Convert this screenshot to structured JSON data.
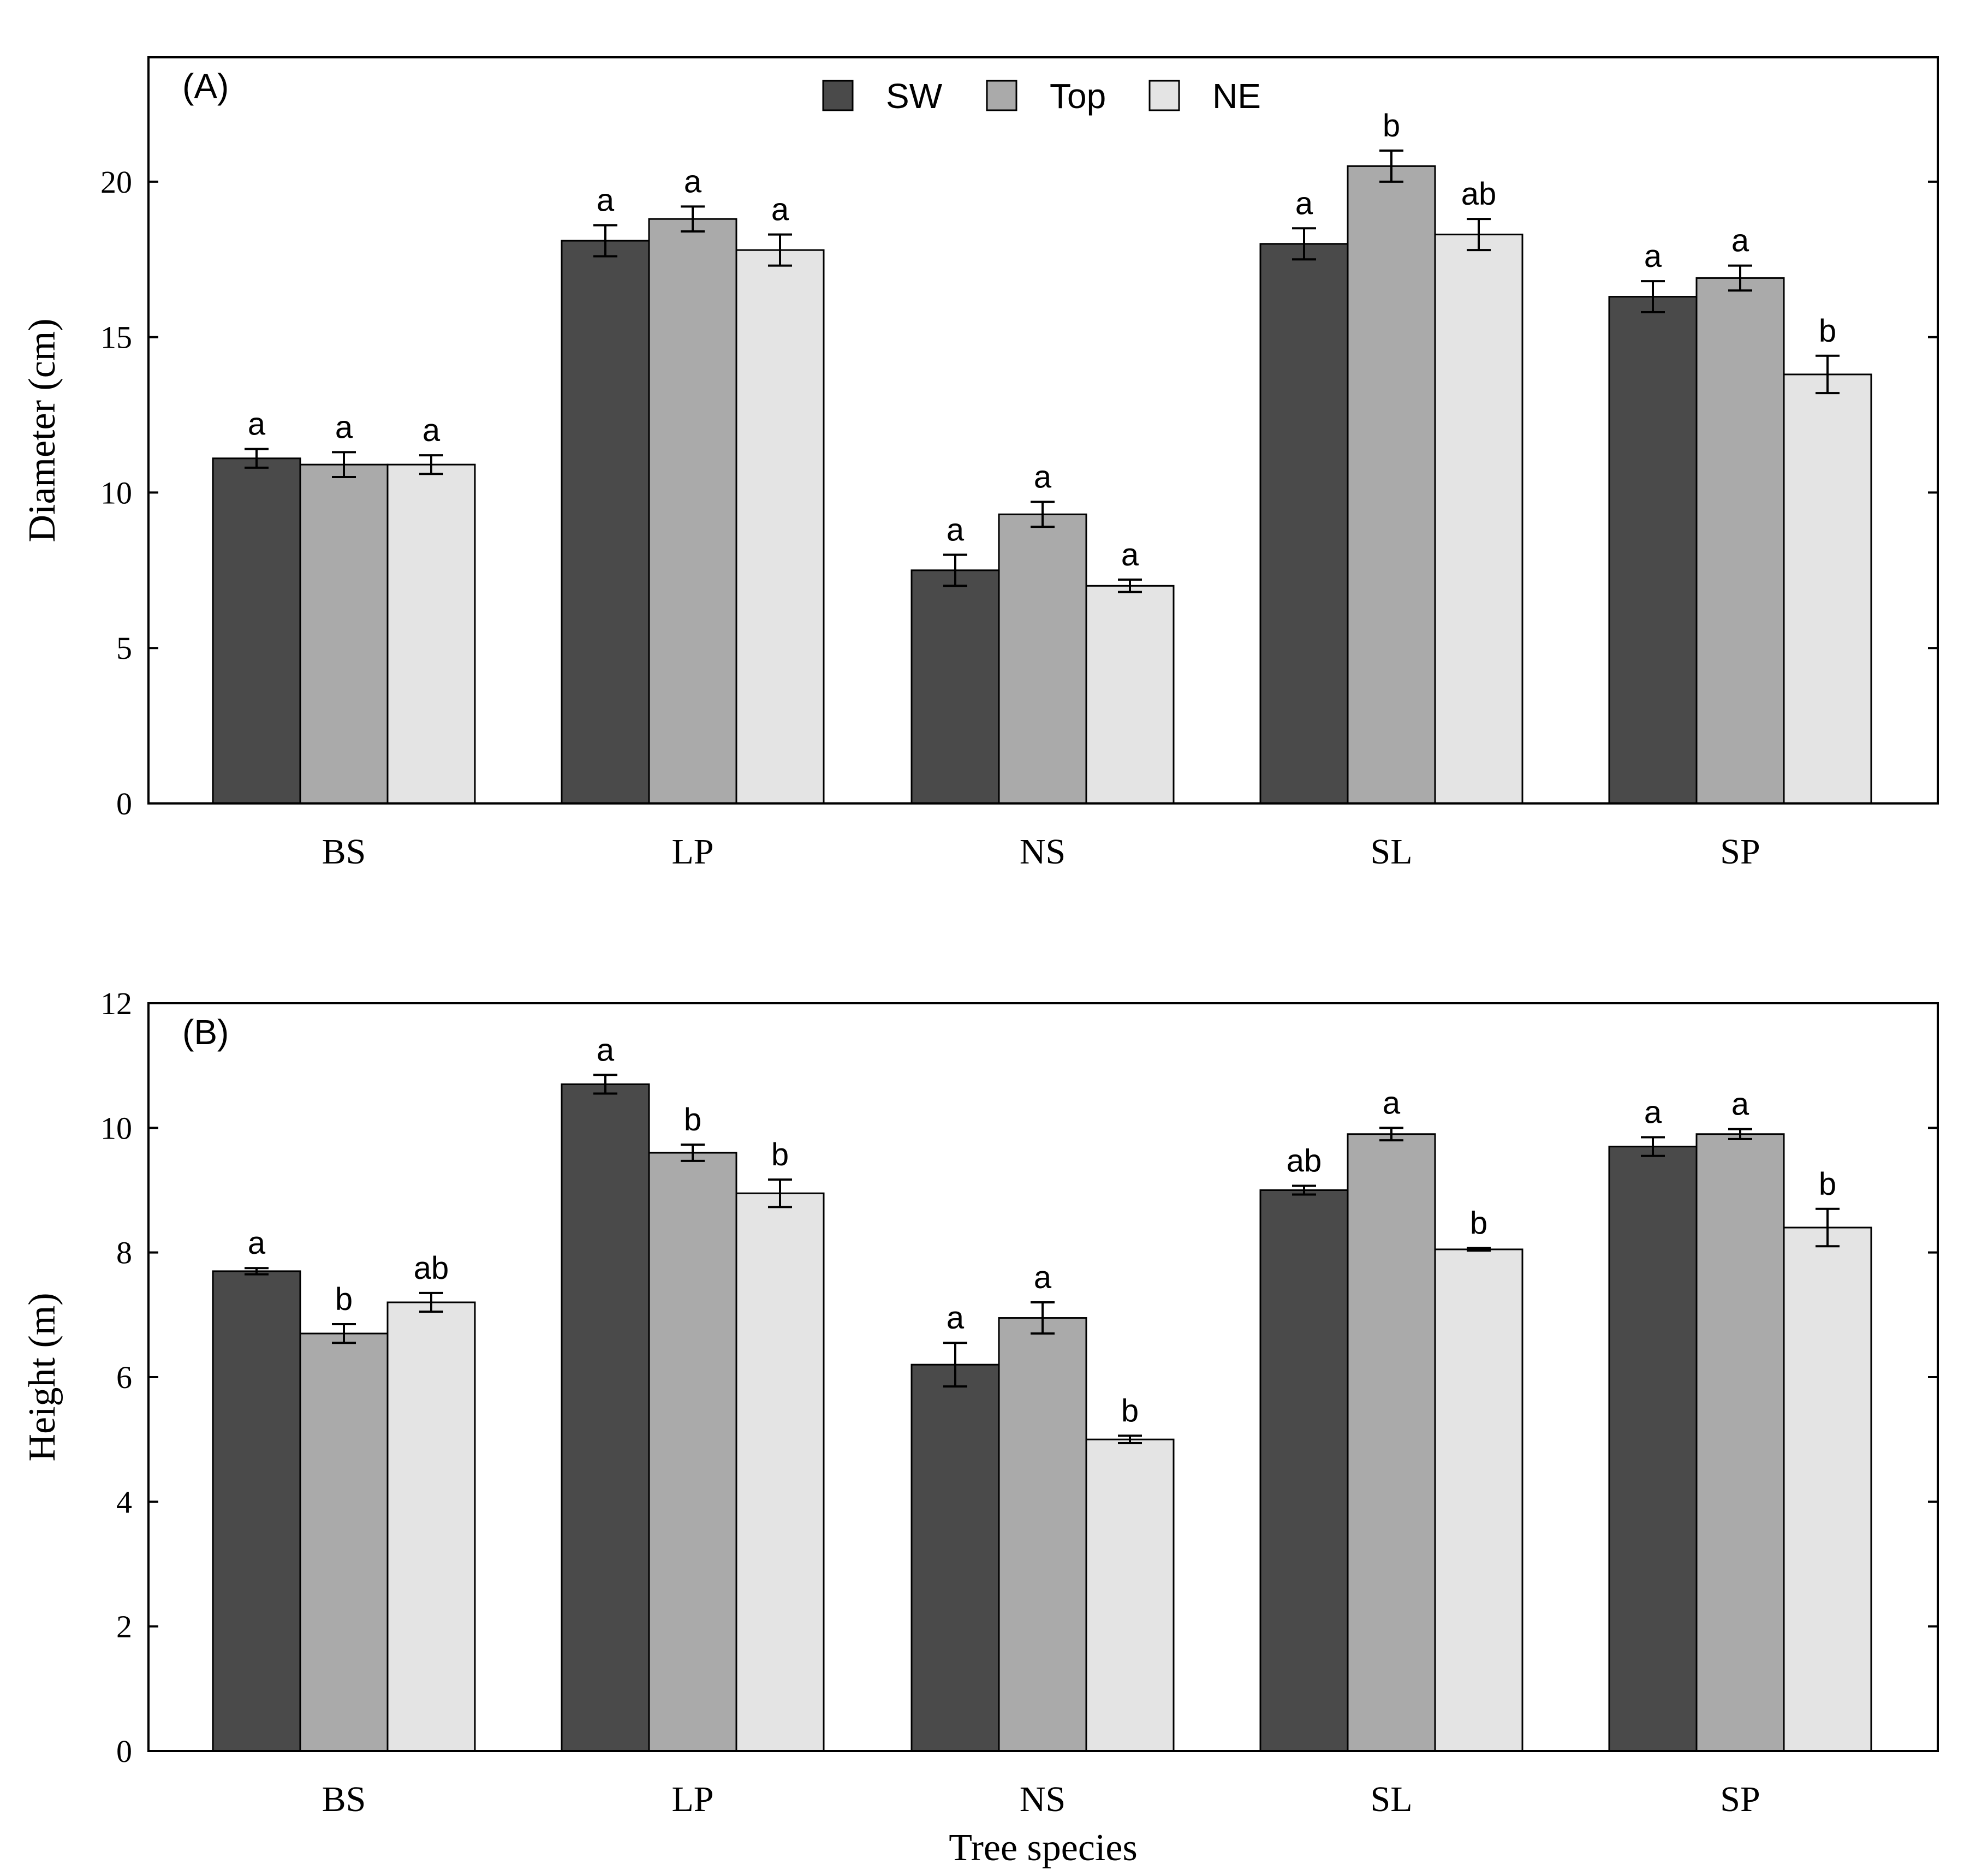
{
  "chart_data": [
    {
      "type": "bar",
      "panel": "(A)",
      "ylabel": "Diameter (cm)",
      "xlabel": "",
      "ylim": [
        0,
        24
      ],
      "yticks": [
        0,
        5,
        10,
        15,
        20
      ],
      "categories": [
        "BS",
        "LP",
        "NS",
        "SL",
        "SP"
      ],
      "series": [
        {
          "name": "SW",
          "color": "#4a4a4a",
          "values": [
            11.1,
            18.1,
            7.5,
            18.0,
            16.3
          ],
          "errors": [
            0.3,
            0.5,
            0.5,
            0.5,
            0.5
          ],
          "letters": [
            "a",
            "a",
            "a",
            "a",
            "a"
          ]
        },
        {
          "name": "Top",
          "color": "#aaaaaa",
          "values": [
            10.9,
            18.8,
            9.3,
            20.5,
            16.9
          ],
          "errors": [
            0.4,
            0.4,
            0.4,
            0.5,
            0.4
          ],
          "letters": [
            "a",
            "a",
            "a",
            "b",
            "a"
          ]
        },
        {
          "name": "NE",
          "color": "#e4e4e4",
          "values": [
            10.9,
            17.8,
            7.0,
            18.3,
            13.8
          ],
          "errors": [
            0.3,
            0.5,
            0.2,
            0.5,
            0.6
          ],
          "letters": [
            "a",
            "a",
            "a",
            "ab",
            "b"
          ]
        }
      ],
      "legend": {
        "position": "top-center",
        "entries": [
          "SW",
          "Top",
          "NE"
        ]
      }
    },
    {
      "type": "bar",
      "panel": "(B)",
      "ylabel": "Height (m)",
      "xlabel": "Tree species",
      "ylim": [
        0,
        12
      ],
      "yticks": [
        0,
        2,
        4,
        6,
        8,
        10,
        12
      ],
      "categories": [
        "BS",
        "LP",
        "NS",
        "SL",
        "SP"
      ],
      "series": [
        {
          "name": "SW",
          "color": "#4a4a4a",
          "values": [
            7.7,
            10.7,
            6.2,
            9.0,
            9.7
          ],
          "errors": [
            0.05,
            0.15,
            0.35,
            0.07,
            0.15
          ],
          "letters": [
            "a",
            "a",
            "a",
            "ab",
            "a"
          ]
        },
        {
          "name": "Top",
          "color": "#aaaaaa",
          "values": [
            6.7,
            9.6,
            6.95,
            9.9,
            9.9
          ],
          "errors": [
            0.15,
            0.13,
            0.25,
            0.1,
            0.08
          ],
          "letters": [
            "b",
            "b",
            "a",
            "a",
            "a"
          ]
        },
        {
          "name": "NE",
          "color": "#e4e4e4",
          "values": [
            7.2,
            8.95,
            5.0,
            8.05,
            8.4
          ],
          "errors": [
            0.15,
            0.22,
            0.06,
            0.02,
            0.3
          ],
          "letters": [
            "ab",
            "b",
            "b",
            "b",
            "b"
          ]
        }
      ]
    }
  ]
}
